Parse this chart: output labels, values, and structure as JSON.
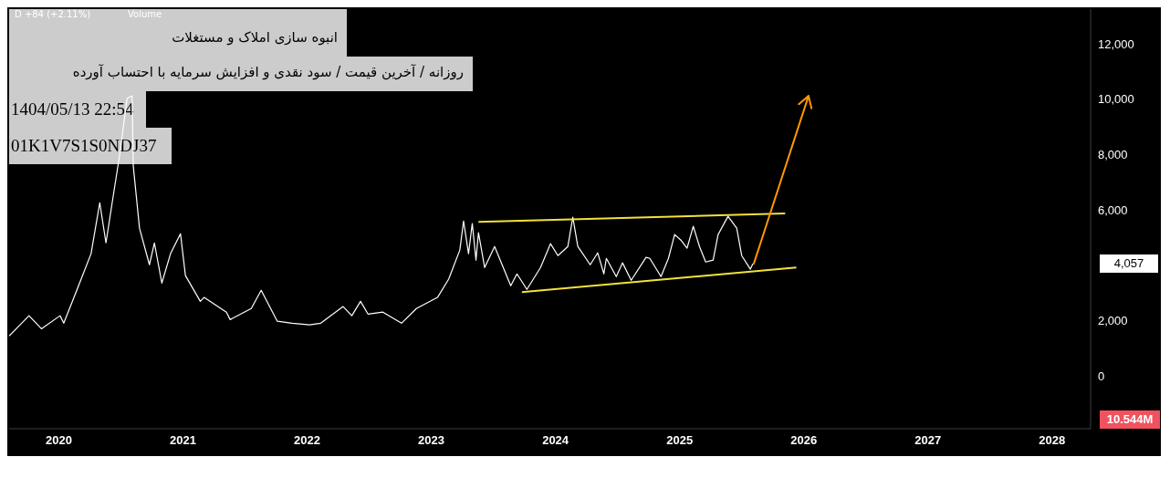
{
  "chart_data": {
    "type": "line",
    "title": "انبوه سازی املاک و مستغلات",
    "subtitle": "روزانه / آخرین قیمت / سود نقدی و افزایش سرمایه با احتساب آورده",
    "annotations": [
      "1404/05/13 22:54",
      "01K1V7S1S0NDJ37",
      "D +84 (+2.11%)",
      "Volume",
      "10.544M",
      "4,057"
    ],
    "xlim": [
      2019.6,
      2028.31
    ],
    "xticks": [
      2020,
      2021,
      2022,
      2023,
      2024,
      2025,
      2026,
      2027,
      2028
    ],
    "ylim": [
      -1900,
      13250
    ],
    "yticks": [
      {
        "value": 0,
        "label": "0"
      },
      {
        "value": 2000,
        "label": "2,000"
      },
      {
        "value": 6000,
        "label": "6,000"
      },
      {
        "value": 8000,
        "label": "8,000"
      },
      {
        "value": 10000,
        "label": "10,000"
      },
      {
        "value": 12000,
        "label": "12,000"
      }
    ],
    "grid": false,
    "legend": false,
    "series": [
      {
        "color": "#ffffff",
        "x": [
          2019.6,
          2019.76,
          2019.86,
          2020.01,
          2020.04,
          2020.11,
          2020.18,
          2020.26,
          2020.33,
          2020.38,
          2020.43,
          2020.49,
          2020.55,
          2020.59,
          2020.6,
          2020.65,
          2020.73,
          2020.77,
          2020.83,
          2020.9,
          2020.98,
          2021.02,
          2021.14,
          2021.17,
          2021.35,
          2021.38,
          2021.55,
          2021.63,
          2021.76,
          2021.88,
          2022.02,
          2022.11,
          2022.29,
          2022.36,
          2022.43,
          2022.49,
          2022.61,
          2022.76,
          2022.88,
          2023.05,
          2023.14,
          2023.23,
          2023.26,
          2023.3,
          2023.33,
          2023.36,
          2023.38,
          2023.43,
          2023.51,
          2023.64,
          2023.69,
          2023.77,
          2023.88,
          2023.96,
          2024.02,
          2024.1,
          2024.14,
          2024.18,
          2024.28,
          2024.34,
          2024.39,
          2024.41,
          2024.49,
          2024.54,
          2024.61,
          2024.73,
          2024.76,
          2024.85,
          2024.91,
          2024.96,
          2025.01,
          2025.06,
          2025.11,
          2025.16,
          2025.21,
          2025.27,
          2025.31,
          2025.39,
          2025.46,
          2025.5,
          2025.57,
          2025.59
        ],
        "values": [
          1450,
          2180,
          1710,
          2180,
          1910,
          2700,
          3500,
          4420,
          6260,
          4810,
          6260,
          7980,
          10020,
          10120,
          7580,
          5340,
          4020,
          4810,
          3360,
          4420,
          5140,
          3630,
          2700,
          2840,
          2310,
          2040,
          2440,
          3100,
          1980,
          1910,
          1850,
          1910,
          2510,
          2180,
          2700,
          2240,
          2310,
          1910,
          2440,
          2840,
          3500,
          4550,
          5600,
          4420,
          5510,
          4190,
          5180,
          3920,
          4680,
          3260,
          3690,
          3130,
          3920,
          4780,
          4350,
          4680,
          5740,
          4680,
          4020,
          4450,
          3690,
          4250,
          3590,
          4090,
          3460,
          4290,
          4250,
          3590,
          4250,
          5110,
          4910,
          4620,
          5410,
          4680,
          4120,
          4190,
          5110,
          5770,
          5340,
          4350,
          3860,
          4057
        ]
      },
      {
        "color": "#f5e13c",
        "x": [
          2023.38,
          2025.85
        ],
        "values": [
          5570,
          5870
        ]
      },
      {
        "color": "#f5e13c",
        "x": [
          2023.73,
          2025.94
        ],
        "values": [
          3030,
          3920
        ]
      }
    ]
  }
}
